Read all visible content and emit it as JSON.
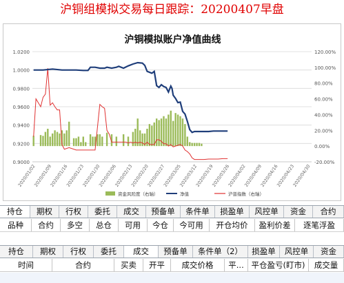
{
  "headline": "沪铜组模拟交易每日跟踪：20200407早盘",
  "chart": {
    "title": "沪铜模拟账户净值曲线",
    "colors": {
      "net_value": "#1f3e7a",
      "risk": "#9bbb59",
      "index": "#e03030"
    }
  },
  "chart_data": {
    "type": "line",
    "title": "沪铜模拟账户净值曲线",
    "x": [
      "2020/01/02",
      "2020/01/09",
      "2020/01/16",
      "2020/01/23",
      "2020/01/30",
      "2020/02/06",
      "2020/02/13",
      "2020/02/20",
      "2020/02/27",
      "2020/03/05",
      "2020/03/12",
      "2020/03/19",
      "2020/03/26",
      "2020/04/02",
      "2020/04/09",
      "2020/04/16",
      "2020/04/23",
      "2020/04/30"
    ],
    "ylim": [
      0.9,
      1.02
    ],
    "y2lim": [
      -0.2,
      1.2
    ],
    "y_ticks": [
      "1.0200",
      "1.0000",
      "0.9800",
      "0.9600",
      "0.9400",
      "0.9200",
      "0.9000"
    ],
    "y2_ticks": [
      "120.00%",
      "100.00%",
      "80.00%",
      "60.00%",
      "40.00%",
      "20.00%",
      "0.00%",
      "-20.00%"
    ],
    "series": [
      {
        "name": "资金风险度（右轴）",
        "type": "bar",
        "points": [
          [
            0,
            0.13
          ],
          [
            3,
            0.14
          ],
          [
            4,
            0.13
          ],
          [
            5,
            0.18
          ],
          [
            6,
            0.22
          ],
          [
            7,
            0.12
          ],
          [
            8,
            0.16
          ],
          [
            9,
            0.2
          ],
          [
            10,
            0.18
          ],
          [
            11,
            0.16
          ],
          [
            12,
            0.2
          ],
          [
            13,
            0.16
          ],
          [
            14,
            0.2
          ],
          [
            15,
            0.31
          ],
          [
            17,
            0.1
          ],
          [
            18,
            0.1
          ],
          [
            19,
            0.12
          ],
          [
            20,
            0.05
          ],
          [
            21,
            0.12
          ],
          [
            22,
            0.05
          ],
          [
            24,
            0.15
          ],
          [
            25,
            0.12
          ],
          [
            26,
            0.12
          ],
          [
            27,
            0.15
          ],
          [
            28,
            0.15
          ],
          [
            29,
            0.12
          ],
          [
            31,
            0.17
          ],
          [
            33,
            0.15
          ],
          [
            35,
            0.12
          ],
          [
            38,
            0.15
          ],
          [
            40,
            0.12
          ],
          [
            42,
            0.18
          ],
          [
            43,
            0.22
          ],
          [
            44,
            0.35
          ],
          [
            45,
            0.2
          ],
          [
            46,
            0.16
          ],
          [
            47,
            0.16
          ],
          [
            48,
            0.22
          ],
          [
            49,
            0.28
          ],
          [
            50,
            0.26
          ],
          [
            51,
            0.3
          ],
          [
            52,
            0.35
          ],
          [
            53,
            0.33
          ],
          [
            54,
            0.35
          ],
          [
            55,
            0.38
          ],
          [
            56,
            0.35
          ],
          [
            57,
            0.4
          ],
          [
            58,
            0.45
          ],
          [
            59,
            0.32
          ],
          [
            60,
            0.42
          ],
          [
            61,
            0.4
          ],
          [
            62,
            0.38
          ],
          [
            63,
            0.35
          ],
          [
            64,
            0.28
          ],
          [
            65,
            0.12
          ],
          [
            66,
            0.05
          ],
          [
            67,
            0.04
          ],
          [
            68,
            0.04
          ],
          [
            69,
            0.04
          ],
          [
            70,
            0.04
          ],
          [
            71,
            0.03
          ]
        ]
      },
      {
        "name": "净值",
        "type": "line",
        "points": [
          [
            0,
            1.0
          ],
          [
            4,
            1.0
          ],
          [
            8,
            1.001
          ],
          [
            12,
            1.0
          ],
          [
            18,
            1.0
          ],
          [
            21,
            0.9995
          ],
          [
            23,
            0.9995
          ],
          [
            24,
            1.003
          ],
          [
            26,
            1.003
          ],
          [
            28,
            1.002
          ],
          [
            30,
            1.002
          ],
          [
            31,
            1.003
          ],
          [
            33,
            1.002
          ],
          [
            35,
            1.003
          ],
          [
            36,
            1.004
          ],
          [
            38,
            1.002
          ],
          [
            40,
            1.0045
          ],
          [
            42,
            1.0065
          ],
          [
            44,
            1.008
          ],
          [
            46,
            1.0075
          ],
          [
            47,
            1.005
          ],
          [
            48,
            0.9985
          ],
          [
            50,
            0.9965
          ],
          [
            51,
            0.9985
          ],
          [
            52,
            0.983
          ],
          [
            53,
            0.981
          ],
          [
            54,
            0.984
          ],
          [
            55,
            0.982
          ],
          [
            56,
            0.981
          ],
          [
            57,
            0.976
          ],
          [
            58,
            0.9825
          ],
          [
            58.5,
            0.98
          ],
          [
            59,
            0.9725
          ],
          [
            60,
            0.969
          ],
          [
            61,
            0.9645
          ],
          [
            62,
            0.965
          ],
          [
            63,
            0.955
          ],
          [
            64,
            0.952
          ],
          [
            65,
            0.944
          ],
          [
            66,
            0.935
          ],
          [
            67,
            0.932
          ],
          [
            68,
            0.933
          ],
          [
            70,
            0.933
          ],
          [
            72,
            0.933
          ],
          [
            74,
            0.933
          ],
          [
            76,
            0.9335
          ],
          [
            78,
            0.9335
          ],
          [
            80,
            0.9335
          ],
          [
            82,
            0.9335
          ]
        ]
      },
      {
        "name": "沪普指数（右轴）",
        "type": "line",
        "points": [
          [
            0,
            0.12
          ],
          [
            1,
            0.6
          ],
          [
            2,
            0.55
          ],
          [
            3,
            0.5
          ],
          [
            4,
            0.62
          ],
          [
            5,
            0.66
          ],
          [
            6,
            0.99
          ],
          [
            7,
            0.52
          ],
          [
            8,
            0.55
          ],
          [
            9,
            0.5
          ],
          [
            10,
            0.46
          ],
          [
            11,
            0.46
          ],
          [
            12,
            0.02
          ],
          [
            13,
            -0.04
          ],
          [
            15,
            -0.02
          ],
          [
            18,
            -0.05
          ],
          [
            21,
            -0.05
          ],
          [
            24,
            -0.05
          ],
          [
            26,
            -0.05
          ],
          [
            28,
            0.53
          ],
          [
            29,
            0.5
          ],
          [
            30,
            0.48
          ],
          [
            31,
            0.2
          ],
          [
            32,
            0.15
          ],
          [
            33,
            0.05
          ],
          [
            34,
            0.05
          ],
          [
            35,
            0.05
          ],
          [
            36,
            0.05
          ],
          [
            37,
            0.05
          ],
          [
            38,
            0.05
          ],
          [
            39,
            0.05
          ],
          [
            40,
            0.04
          ],
          [
            41,
            0.05
          ],
          [
            42,
            0.04
          ],
          [
            43,
            0.05
          ],
          [
            44,
            0.04
          ],
          [
            45,
            0.05
          ],
          [
            46,
            0.04
          ],
          [
            47,
            0.02
          ],
          [
            48,
            0.05
          ],
          [
            49,
            0.02
          ],
          [
            50,
            0.02
          ],
          [
            51,
            0.02
          ],
          [
            52,
            0.08
          ],
          [
            53,
            0.08
          ],
          [
            54,
            0.06
          ],
          [
            55,
            0.03
          ],
          [
            56,
            0.03
          ],
          [
            57,
            0.0
          ],
          [
            58,
            0.02
          ],
          [
            59,
            -0.01
          ],
          [
            60,
            0.0
          ],
          [
            61,
            0.01
          ],
          [
            62,
            0.02
          ],
          [
            63,
            0.0
          ],
          [
            64,
            -0.05
          ],
          [
            65,
            -0.07
          ],
          [
            66,
            -0.1
          ],
          [
            67,
            -0.15
          ],
          [
            68,
            -0.17
          ],
          [
            70,
            -0.17
          ],
          [
            72,
            -0.17
          ],
          [
            74,
            -0.165
          ],
          [
            76,
            -0.165
          ],
          [
            78,
            -0.165
          ],
          [
            80,
            -0.16
          ],
          [
            82,
            -0.16
          ]
        ]
      }
    ],
    "n_slots": 118,
    "legend": [
      "资金风险度（右轴）",
      "净值",
      "沪普指数（右轴）"
    ],
    "legend_position": "bottom"
  },
  "tabs1": [
    "持仓",
    "期权",
    "行权",
    "委托",
    "成交",
    "预备单",
    "条件单",
    "损盈单",
    "风控单",
    "资金",
    "合约"
  ],
  "cols1": [
    "品种",
    "合约",
    "多空",
    "总仓",
    "可用",
    "今仓",
    "今可用",
    "开仓均价",
    "盈利价差",
    "逐笔浮盈"
  ],
  "tabs2": [
    "持仓",
    "期权",
    "行权",
    "委托",
    "成交",
    "预备单",
    "条件单（2）",
    "损盈单",
    "风控单",
    "资金"
  ],
  "cols2": [
    "时间",
    "合约",
    "买卖",
    "开平",
    "成交价格",
    "平...",
    "平仓盈亏(盯市)",
    "成交量"
  ]
}
